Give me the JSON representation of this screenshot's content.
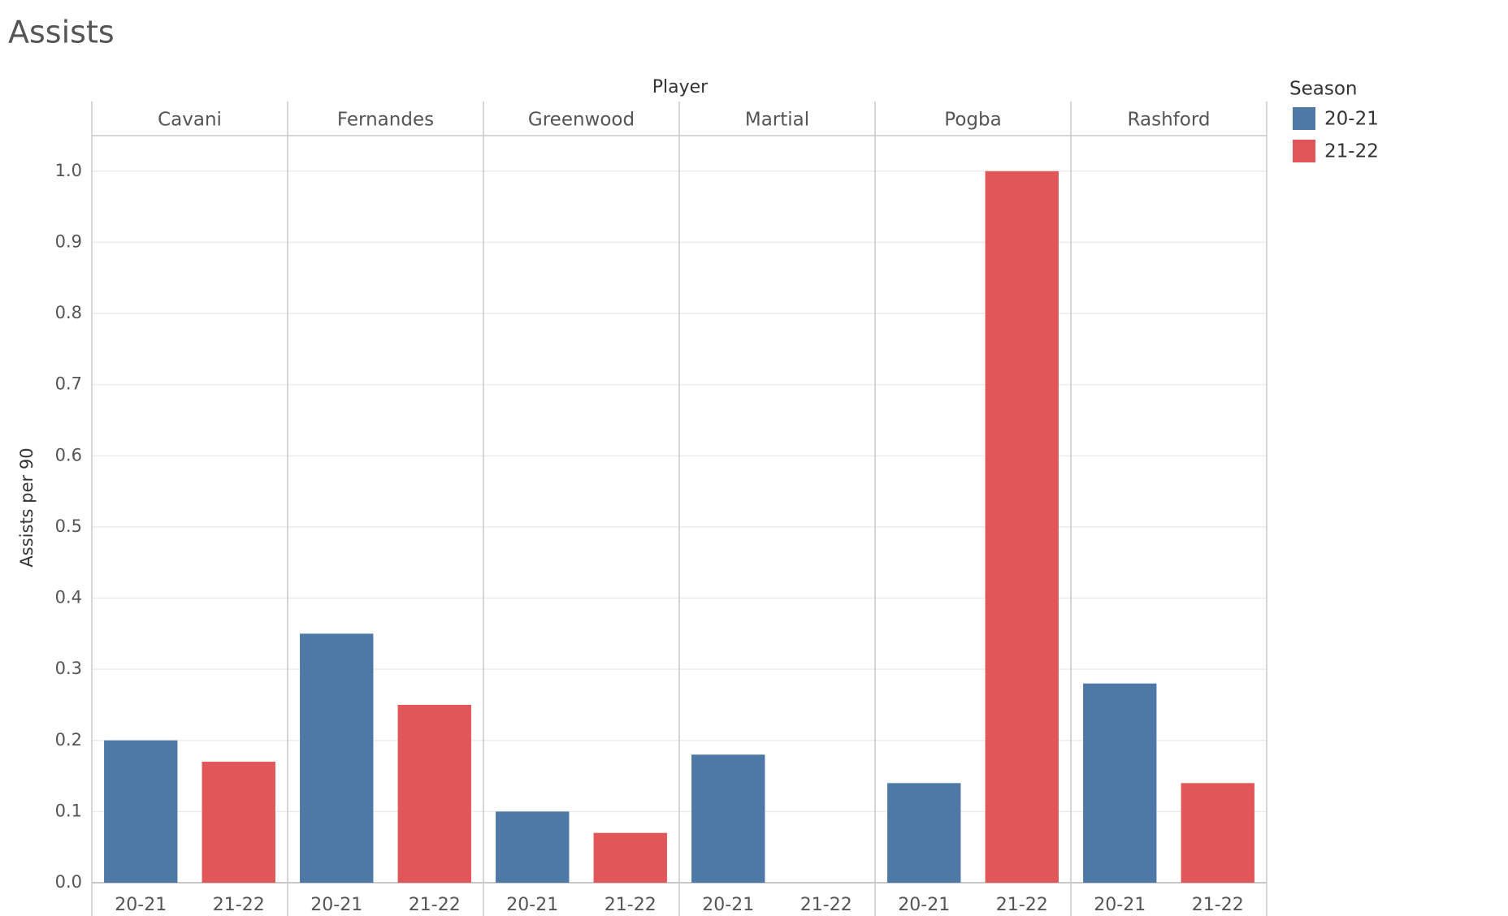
{
  "chart_data": {
    "type": "bar",
    "title": "Assists",
    "x_label": "Player",
    "y_label": "Assists per 90",
    "legend_title": "Season",
    "categories": [
      "Cavani",
      "Fernandes",
      "Greenwood",
      "Martial",
      "Pogba",
      "Rashford"
    ],
    "series": [
      {
        "name": "20-21",
        "color": "#4e79a7",
        "values": [
          0.2,
          0.35,
          0.1,
          0.18,
          0.14,
          0.28
        ]
      },
      {
        "name": "21-22",
        "color": "#e15759",
        "values": [
          0.17,
          0.25,
          0.07,
          0,
          1.0,
          0.14
        ]
      }
    ],
    "ylim": [
      0,
      1.05
    ],
    "yticks": [
      {
        "value": 0,
        "label": "0.0"
      },
      0.1,
      0.2,
      0.3,
      0.4,
      0.5,
      0.6,
      0.7,
      0.8,
      0.9,
      {
        "value": 1,
        "label": "1.0"
      }
    ],
    "grid": true,
    "legend": "right"
  }
}
